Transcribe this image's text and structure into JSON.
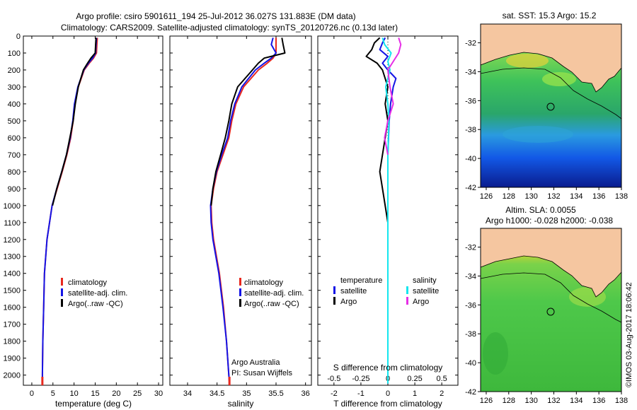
{
  "header": {
    "line1": "Argo profile: csiro 5901611_194 25-Jul-2012 36.027S 131.883E (DM data)",
    "line2": "Climatology: CARS2009. Satellite-adjusted climatology: synTS_20120726.nc (0.13d later)"
  },
  "colors": {
    "climatology": "#e8281e",
    "satellite": "#1414e6",
    "argo": "#000000",
    "argo_salinity_diff": "#e62ee6",
    "satellite_salinity_diff": "#14e6ee",
    "land": "#f5c6a0"
  },
  "chart_data": [
    {
      "type": "line",
      "name": "temperature-profile",
      "xlabel": "temperature (deg C)",
      "ylabel": "",
      "xlim": [
        -2,
        31
      ],
      "ylim": [
        2060,
        0
      ],
      "y_inverted": true,
      "xticks": [
        "0",
        "5",
        "10",
        "15",
        "20",
        "25",
        "30"
      ],
      "xtick_values": [
        0,
        5,
        10,
        15,
        20,
        25,
        30
      ],
      "yticks": [
        "0",
        "100",
        "200",
        "300",
        "400",
        "500",
        "600",
        "700",
        "800",
        "900",
        "1000",
        "1100",
        "1200",
        "1300",
        "1400",
        "1500",
        "1600",
        "1700",
        "1800",
        "1900",
        "2000"
      ],
      "ytick_values": [
        0,
        100,
        200,
        300,
        400,
        500,
        600,
        700,
        800,
        900,
        1000,
        1100,
        1200,
        1300,
        1400,
        1500,
        1600,
        1700,
        1800,
        1900,
        2000
      ],
      "legend": [
        "climatology",
        "satellite-adj. clim.",
        "Argo(..raw -QC)"
      ],
      "series": [
        {
          "name": "climatology",
          "depth": [
            10,
            50,
            100,
            130,
            160,
            200,
            300,
            400,
            500,
            600,
            700,
            800,
            900,
            1000,
            1200,
            1400,
            1600,
            1800,
            2000,
            2050
          ],
          "values": [
            15.5,
            15.4,
            15.3,
            14.6,
            13.6,
            12.4,
            11.0,
            10.2,
            9.8,
            9.2,
            8.3,
            7.2,
            6.0,
            4.8,
            3.6,
            3.0,
            2.8,
            2.6,
            2.5,
            2.5
          ]
        },
        {
          "name": "satellite-adj. clim.",
          "depth": [
            10,
            50,
            100,
            130,
            160,
            200,
            300,
            400,
            500,
            600,
            700,
            800,
            900,
            1000,
            1200,
            1400,
            1600,
            1800,
            2000,
            2050
          ],
          "values": [
            15.3,
            15.2,
            15.1,
            14.4,
            13.4,
            12.3,
            10.9,
            10.1,
            9.7,
            9.1,
            8.2,
            7.1,
            5.9,
            4.8,
            3.6,
            3.0,
            2.8,
            2.6,
            2.5,
            2.5
          ]
        },
        {
          "name": "Argo(..raw -QC)",
          "depth": [
            10,
            50,
            100,
            130,
            160,
            200,
            300,
            400,
            500,
            600,
            700,
            800,
            900,
            1000
          ],
          "values": [
            15.2,
            15.1,
            15.0,
            14.0,
            13.2,
            12.2,
            11.0,
            10.3,
            9.8,
            9.0,
            8.2,
            7.1,
            5.9,
            4.9
          ]
        }
      ]
    },
    {
      "type": "line",
      "name": "salinity-profile",
      "xlabel": "salinity",
      "ylabel": "",
      "xlim": [
        33.7,
        36.1
      ],
      "ylim": [
        2060,
        0
      ],
      "y_inverted": true,
      "xticks": [
        "34",
        "34.5",
        "35",
        "35.5",
        "36"
      ],
      "xtick_values": [
        34,
        34.5,
        35,
        35.5,
        36
      ],
      "legend": [
        "climatology",
        "satellite-adj. clim.",
        "Argo(..raw -QC)"
      ],
      "annotation": [
        "Argo Australia",
        "PI: Susan Wijffels"
      ],
      "series": [
        {
          "name": "climatology",
          "depth": [
            10,
            50,
            100,
            130,
            160,
            200,
            300,
            400,
            500,
            600,
            700,
            800,
            900,
            1000,
            1100,
            1200,
            1400,
            1600,
            1800,
            2000,
            2050
          ],
          "values": [
            35.5,
            35.5,
            35.5,
            35.45,
            35.35,
            35.2,
            34.95,
            34.82,
            34.75,
            34.7,
            34.6,
            34.5,
            34.44,
            34.4,
            34.41,
            34.44,
            34.54,
            34.61,
            34.66,
            34.7,
            34.71
          ]
        },
        {
          "name": "satellite-adj. clim.",
          "depth": [
            10,
            50,
            100,
            130,
            160,
            200,
            300,
            400,
            500,
            600,
            700,
            800,
            900,
            1000,
            1100,
            1200,
            1400,
            1600,
            1800,
            2000,
            2050
          ],
          "values": [
            35.45,
            35.42,
            35.5,
            35.42,
            35.3,
            35.15,
            34.92,
            34.8,
            34.73,
            34.68,
            34.58,
            34.49,
            34.43,
            34.39,
            34.4,
            34.43,
            34.53,
            34.6,
            34.66,
            34.7,
            34.71
          ]
        },
        {
          "name": "Argo(..raw -QC)",
          "depth": [
            10,
            50,
            100,
            130,
            160,
            200,
            300,
            400,
            500,
            600,
            700,
            800,
            900,
            1000
          ],
          "values": [
            35.6,
            35.62,
            35.65,
            35.3,
            35.2,
            35.1,
            34.85,
            34.75,
            34.7,
            34.64,
            34.56,
            34.48,
            34.43,
            34.4
          ]
        }
      ]
    },
    {
      "type": "line",
      "name": "difference-profile",
      "xlabel": "T difference from climatology",
      "xlabel_top": "S difference from climatology",
      "xlim": [
        -2.6,
        2.6
      ],
      "ylim": [
        2060,
        0
      ],
      "y_inverted": true,
      "xticks_bottom": [
        "-2",
        "-1",
        "0",
        "1",
        "2"
      ],
      "xtick_values_bottom": [
        -2,
        -1,
        0,
        1,
        2
      ],
      "xticks_top": [
        "-0.5",
        "-0.25",
        "0",
        "0.25",
        "0.5"
      ],
      "xtick_values_top": [
        -0.5,
        -0.25,
        0,
        0.25,
        0.5
      ],
      "legend_headers": [
        "temperature",
        "salinity"
      ],
      "legend": [
        "satellite",
        "Argo",
        "satellite",
        "Argo"
      ],
      "series": [
        {
          "name": "satellite",
          "depth": [
            10,
            40,
            80,
            120,
            160,
            200,
            250,
            300,
            400,
            500,
            700,
            1000,
            1500,
            2050
          ],
          "values": [
            -0.1,
            -0.2,
            -0.3,
            0.0,
            -0.2,
            0.0,
            0.3,
            0.2,
            0.1,
            0.05,
            0.0,
            0.0,
            0.0,
            0.0
          ]
        },
        {
          "name": "Argo",
          "depth": [
            10,
            40,
            80,
            120,
            160,
            200,
            300,
            400,
            500,
            700,
            800,
            900,
            1000,
            1100
          ],
          "values": [
            -0.3,
            -0.5,
            -0.6,
            -0.8,
            -0.4,
            -0.2,
            0.0,
            -0.1,
            0.0,
            -0.2,
            -0.3,
            -0.2,
            -0.1,
            0.0
          ]
        },
        {
          "name": "satellite",
          "depth": [
            10,
            50,
            100,
            150,
            200,
            300,
            400,
            500,
            700,
            1000,
            1500,
            2050
          ],
          "values": [
            -0.05,
            -0.03,
            0.03,
            0.0,
            0.02,
            -0.02,
            0.0,
            0.01,
            0.0,
            0.0,
            0.0,
            0.0
          ]
        },
        {
          "name": "Argo",
          "depth": [
            10,
            50,
            100,
            150,
            200,
            300,
            400,
            500,
            600,
            700
          ],
          "values": [
            0.1,
            0.12,
            0.1,
            0.05,
            0.0,
            0.02,
            0.05,
            0.0,
            -0.03,
            0.0
          ]
        }
      ]
    },
    {
      "type": "heatmap",
      "name": "sst-map",
      "title": "sat. SST: 15.3 Argo: 15.2",
      "xticks": [
        "126",
        "128",
        "130",
        "132",
        "134",
        "136",
        "138"
      ],
      "xtick_values": [
        126,
        128,
        130,
        132,
        134,
        136,
        138
      ],
      "yticks": [
        "-32",
        "-34",
        "-36",
        "-38",
        "-40",
        "-42"
      ],
      "ytick_values": [
        -32,
        -34,
        -36,
        -38,
        -40,
        -42
      ],
      "xlim": [
        125.5,
        138
      ],
      "ylim": [
        -42,
        -30.7
      ],
      "marker": {
        "lon": 131.883,
        "lat": -36.027
      }
    },
    {
      "type": "heatmap",
      "name": "sla-map",
      "title": "Altim. SLA: 0.0055",
      "subtitle": "Argo h1000: -0.028 h2000: -0.038",
      "xticks": [
        "126",
        "128",
        "130",
        "132",
        "134",
        "136",
        "138"
      ],
      "xtick_values": [
        126,
        128,
        130,
        132,
        134,
        136,
        138
      ],
      "yticks": [
        "-32",
        "-34",
        "-36",
        "-38",
        "-40",
        "-42"
      ],
      "ytick_values": [
        -32,
        -34,
        -36,
        -38,
        -40,
        -42
      ],
      "xlim": [
        125.5,
        138
      ],
      "ylim": [
        -42,
        -30.7
      ],
      "marker": {
        "lon": 131.883,
        "lat": -36.027
      }
    }
  ],
  "footer": {
    "credit": "©IMOS 03-Aug-2017 18:06:42"
  }
}
